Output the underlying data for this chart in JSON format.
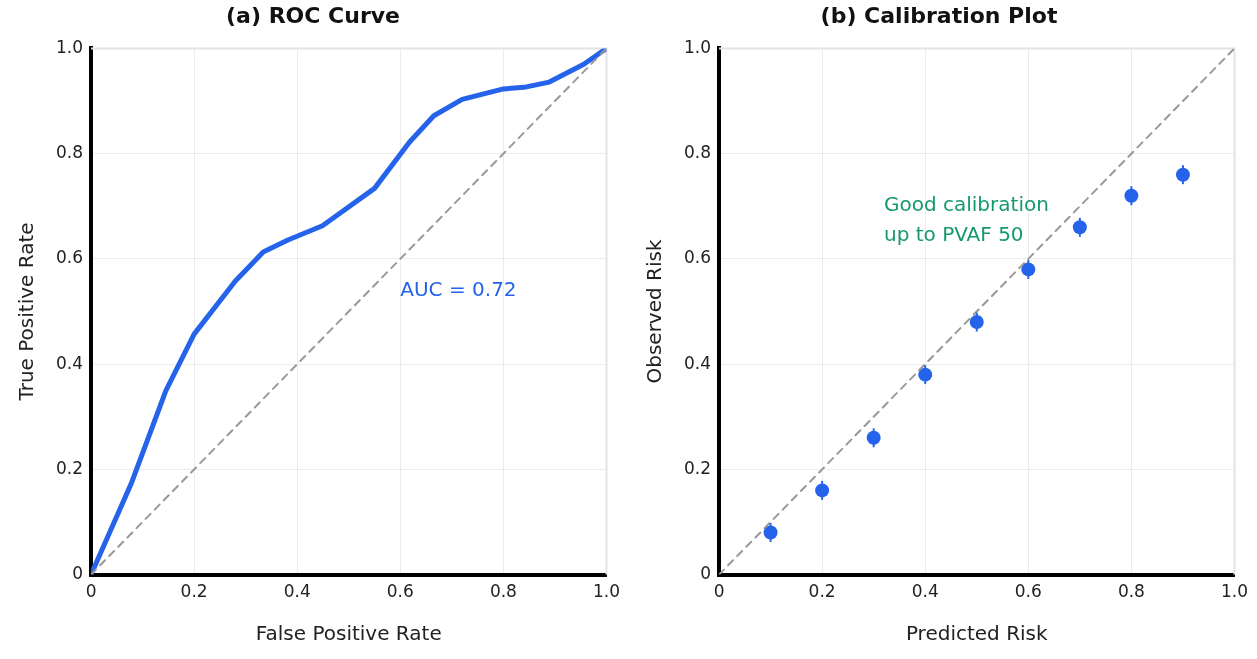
{
  "chart_data": [
    {
      "type": "line",
      "title": "(a) ROC Curve",
      "xlabel": "False Positive Rate",
      "ylabel": "True Positive Rate",
      "xlim": [
        0,
        1
      ],
      "ylim": [
        0,
        1
      ],
      "xticks": [
        0,
        0.2,
        0.4,
        0.6,
        0.8,
        {
          "value": 1,
          "label": "1.0"
        }
      ],
      "yticks": [
        0,
        0.2,
        0.4,
        0.6,
        0.8,
        {
          "value": 1,
          "label": "1.0"
        }
      ],
      "grid": true,
      "legend": false,
      "marker": "none",
      "series": [
        {
          "color": "#2563eb",
          "x": [
            0,
            0.078,
            0.145,
            0.2,
            0.28,
            0.334,
            0.382,
            0.449,
            0.55,
            0.618,
            0.665,
            0.72,
            0.8,
            0.84,
            0.889,
            0.956,
            1
          ],
          "values": [
            0,
            0.173,
            0.349,
            0.457,
            0.558,
            0.613,
            0.636,
            0.663,
            0.734,
            0.822,
            0.872,
            0.903,
            0.923,
            0.926,
            0.936,
            0.97,
            1
          ]
        },
        {
          "color": "#999999",
          "line_style": "dashed",
          "x": [
            0,
            1
          ],
          "values": [
            0,
            1
          ]
        }
      ],
      "annotations": [
        "AUC = 0.72"
      ]
    },
    {
      "type": "scatter",
      "title": "(b) Calibration Plot",
      "xlabel": "Predicted Risk",
      "ylabel": "Observed Risk",
      "xlim": [
        0,
        1
      ],
      "ylim": [
        0,
        1
      ],
      "xticks": [
        0,
        0.2,
        0.4,
        0.6,
        0.8,
        {
          "value": 1,
          "label": "1.0"
        }
      ],
      "yticks": [
        0,
        0.2,
        0.4,
        0.6,
        0.8,
        {
          "value": 1,
          "label": "1.0"
        }
      ],
      "grid": true,
      "legend": false,
      "marker": "circle",
      "series": [
        {
          "color": "#2563eb",
          "x": [
            0.1,
            0.2,
            0.3,
            0.4,
            0.5,
            0.6,
            0.7,
            0.8,
            0.9
          ],
          "values": [
            0.08,
            0.16,
            0.26,
            0.38,
            0.48,
            0.58,
            0.66,
            0.72,
            0.76
          ],
          "errors": [
            0.018,
            0.018,
            0.018,
            0.018,
            0.018,
            0.018,
            0.018,
            0.018,
            0.018
          ]
        },
        {
          "type": "line",
          "marker": "none",
          "color": "#999999",
          "line_style": "dashed",
          "x": [
            0,
            1
          ],
          "values": [
            0,
            1
          ]
        }
      ],
      "annotations": [
        "Good calibration up to PVAF 50"
      ]
    }
  ]
}
